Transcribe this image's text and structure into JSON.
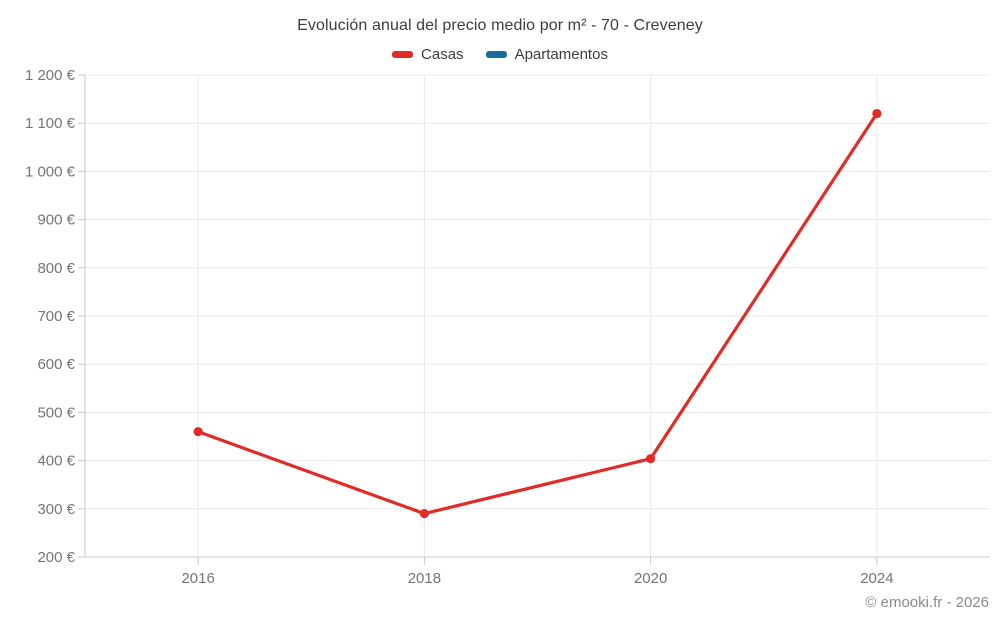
{
  "title": "Evolución anual del precio medio por m² - 70 - Creveney",
  "footer": "© emooki.fr - 2026",
  "legend": [
    {
      "label": "Casas",
      "color": "#e02b27"
    },
    {
      "label": "Apartamentos",
      "color": "#176d98"
    }
  ],
  "colors": {
    "series_casas": "#e02b27",
    "series_apartamentos": "#176d98",
    "grid": "#eaeaea",
    "axis": "#c9c9c9",
    "tick_label": "#757575",
    "title_text": "#3d3d3d",
    "footer_text": "#8a8a8a",
    "background": "#ffffff"
  },
  "chart_data": {
    "type": "line",
    "title": "Evolución anual del precio medio por m² - 70 - Creveney",
    "xlabel": "",
    "ylabel": "",
    "categories": [
      "2016",
      "2018",
      "2020",
      "2024"
    ],
    "series": [
      {
        "name": "Casas",
        "color": "#e02b27",
        "values": [
          460,
          290,
          404,
          1120
        ]
      },
      {
        "name": "Apartamentos",
        "color": "#176d98",
        "values": []
      }
    ],
    "ylim": [
      200,
      1200
    ],
    "ytick_step": 100,
    "ytick_suffix": " €",
    "grid": true,
    "legend_position": "top",
    "point_radius": 4.6,
    "line_width": 3.2
  }
}
